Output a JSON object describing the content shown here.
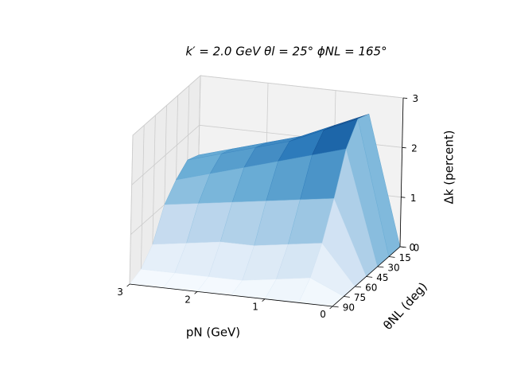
{
  "chart_data": {
    "type": "surface",
    "title": "k′ = 2.0 GeV   θl = 25°   ϕNL = 165°",
    "xlabel": "pN (GeV)",
    "ylabel": "θNL (deg)",
    "zlabel": "Δk (percent)",
    "x": [
      0,
      0.5,
      1,
      1.5,
      2,
      2.5,
      3
    ],
    "y": [
      0,
      15,
      30,
      45,
      60,
      75,
      90
    ],
    "z": [
      [
        0,
        2.6,
        2.3,
        2.0,
        1.8,
        1.6,
        1.4
      ],
      [
        0,
        2.7,
        2.4,
        2.1,
        1.9,
        1.7,
        1.5
      ],
      [
        0,
        2.3,
        2.1,
        1.9,
        1.7,
        1.5,
        1.3
      ],
      [
        0,
        1.5,
        1.4,
        1.3,
        1.2,
        1.1,
        1.0
      ],
      [
        0,
        0.8,
        0.7,
        0.6,
        0.6,
        0.5,
        0.4
      ],
      [
        0,
        0.3,
        0.2,
        0.1,
        0.1,
        0.1,
        0.1
      ],
      [
        0,
        0,
        0,
        0,
        0,
        0,
        0
      ]
    ],
    "colormap": "Blues",
    "xlim": [
      0,
      3
    ],
    "xticks": [
      0,
      1,
      2,
      3
    ],
    "ylim": [
      0,
      90
    ],
    "yticks": [
      0,
      15,
      30,
      45,
      60,
      75,
      90
    ],
    "zlim": [
      0,
      3
    ],
    "zticks": [
      0,
      1,
      2,
      3
    ],
    "grid": true
  }
}
